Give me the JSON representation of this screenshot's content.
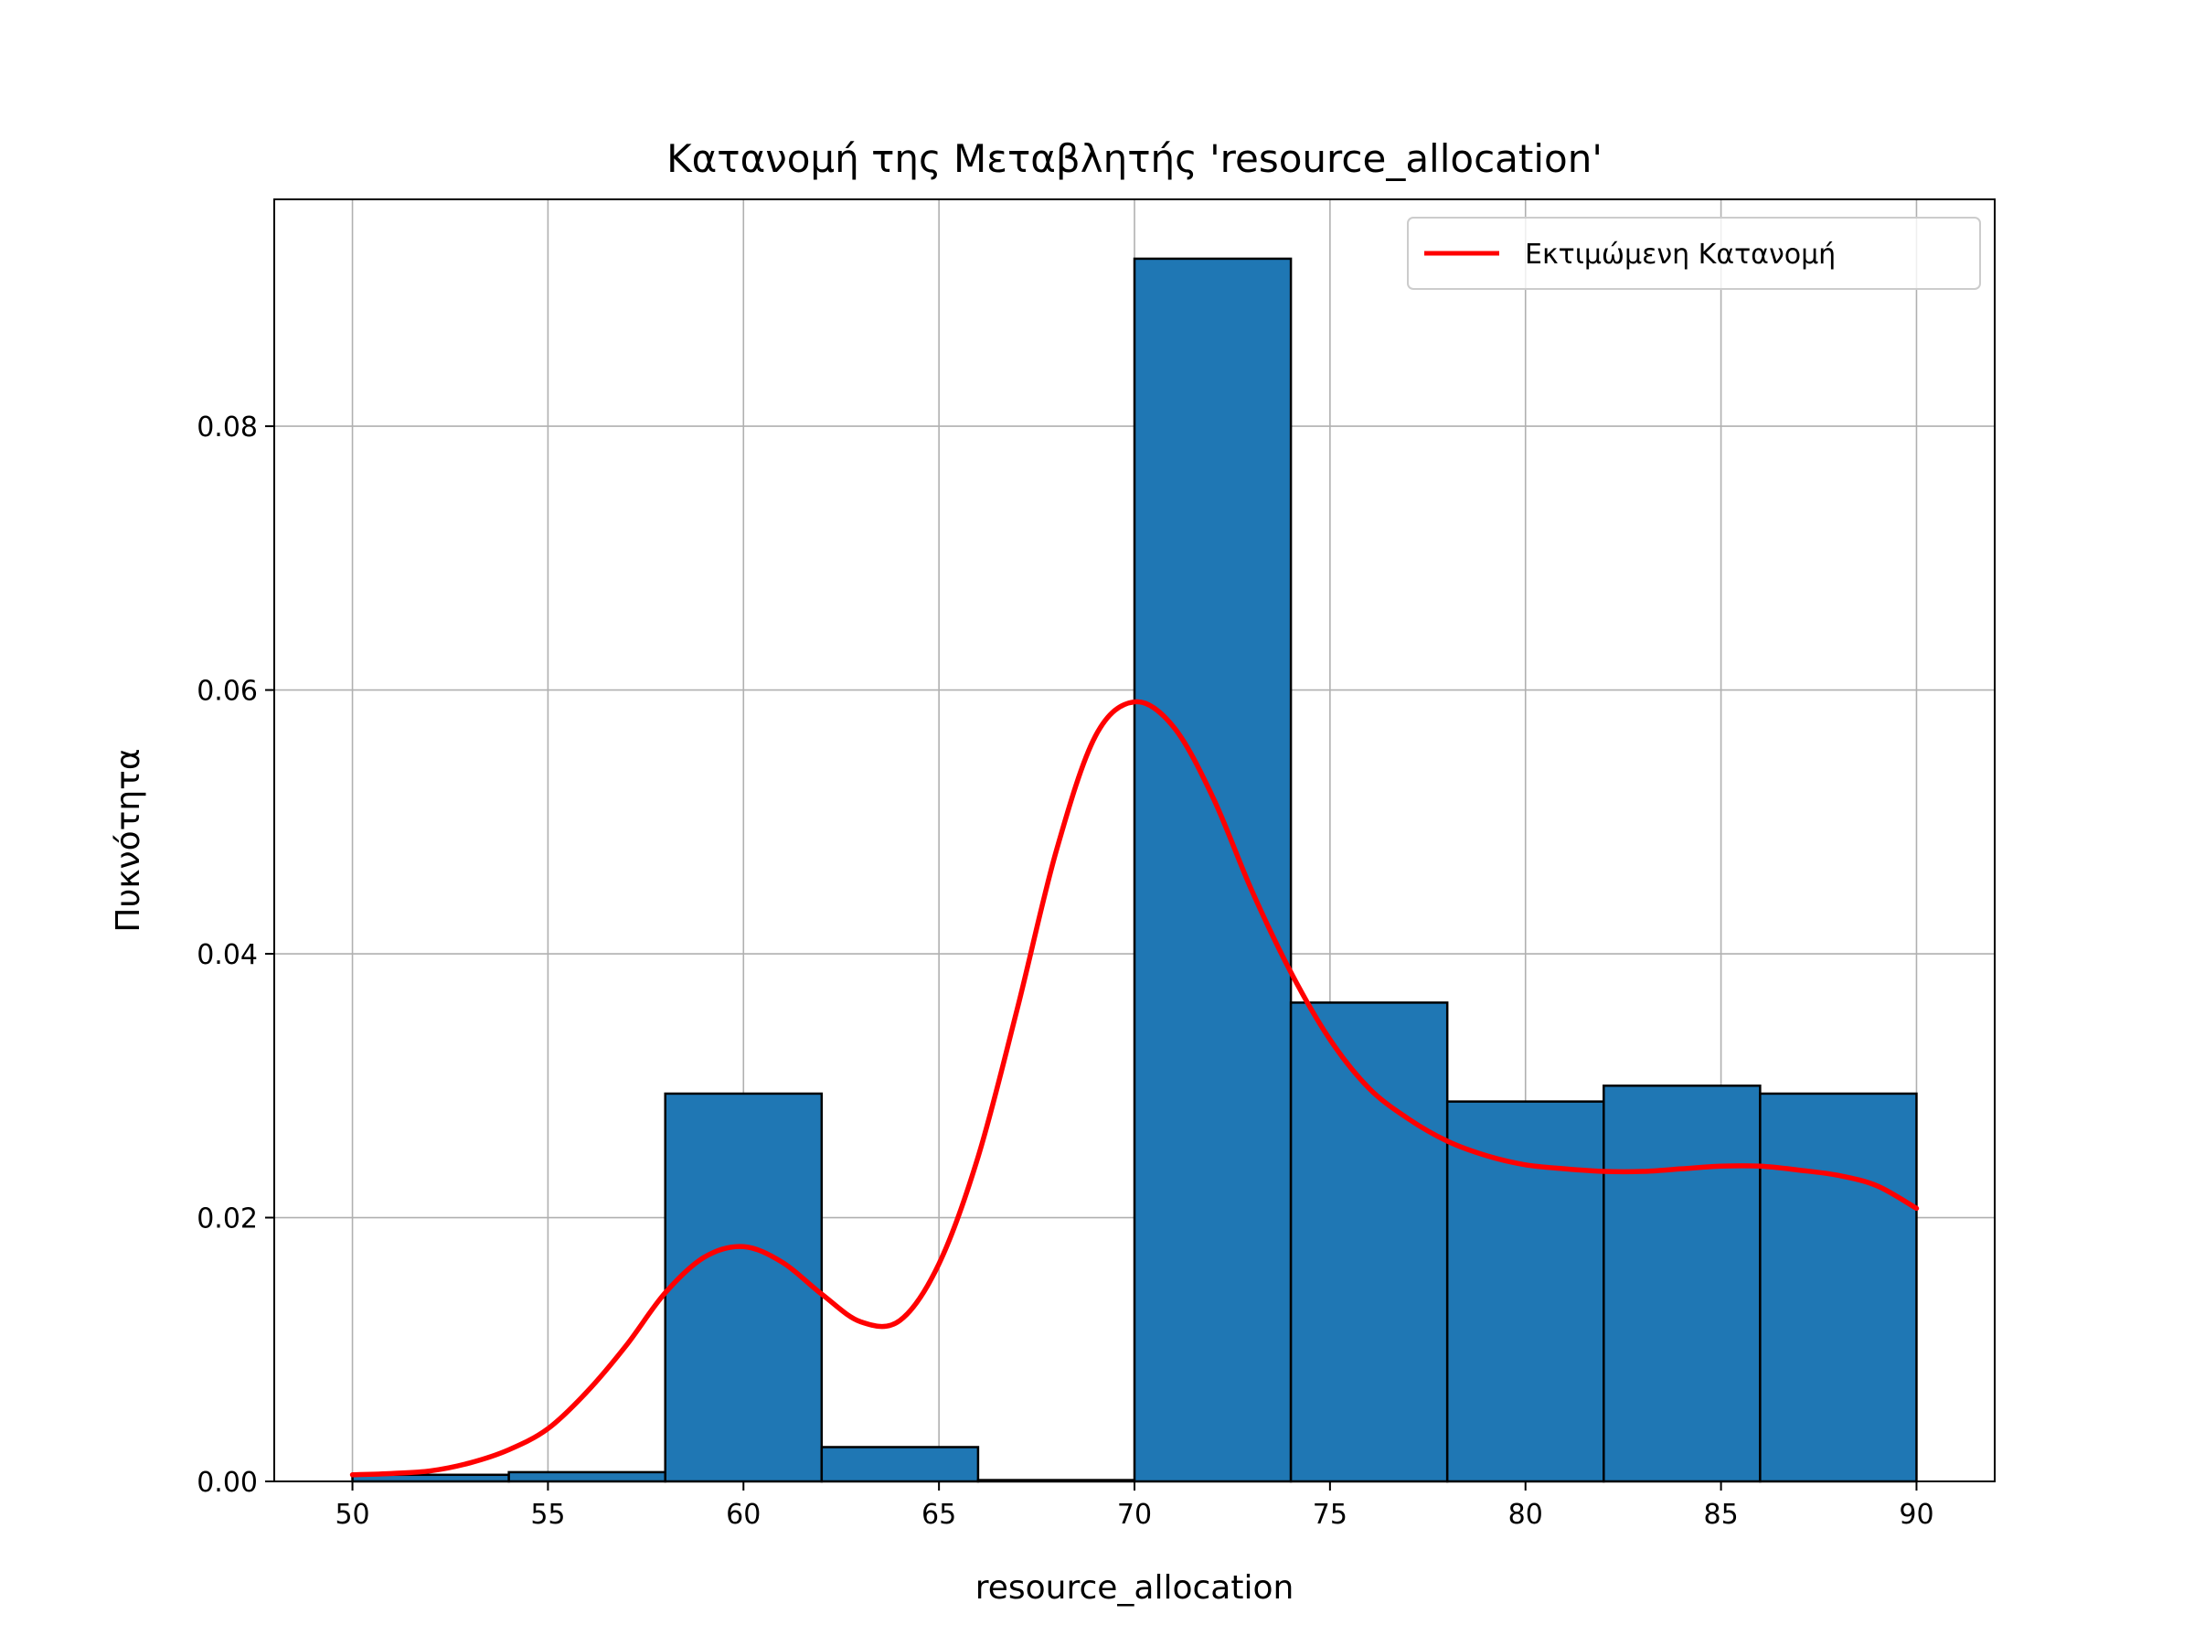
{
  "chart_data": {
    "type": "bar",
    "title": "Κατανομή της Μεταβλητής 'resource_allocation'",
    "xlabel": "resource_allocation",
    "ylabel": "Πυκνότητα",
    "xlim": [
      48,
      92
    ],
    "ylim": [
      0,
      0.0972
    ],
    "x_ticks": [
      50,
      55,
      60,
      65,
      70,
      75,
      80,
      85,
      90
    ],
    "y_ticks": [
      0.0,
      0.02,
      0.04,
      0.06,
      0.08
    ],
    "y_tick_labels": [
      "0.00",
      "0.02",
      "0.04",
      "0.06",
      "0.08"
    ],
    "grid": true,
    "legend_position": "top-right",
    "histogram": {
      "bin_edges": [
        50,
        54,
        58,
        62,
        66,
        70,
        74,
        78,
        82,
        86,
        90
      ],
      "values": [
        0.0005,
        0.0007,
        0.0294,
        0.0026,
        0.0001,
        0.0927,
        0.0363,
        0.0288,
        0.03,
        0.0294
      ],
      "color": "#1f77b4",
      "edgecolor": "#000000"
    },
    "series": [
      {
        "name": "Εκτιμώμενη Κατανομή",
        "type": "line",
        "color": "#ff0000",
        "x": [
          50,
          51,
          52,
          53,
          54,
          55,
          56,
          57,
          58,
          59,
          60,
          61,
          62,
          63,
          64,
          65,
          66,
          67,
          68,
          69,
          70,
          71,
          72,
          73,
          74,
          75,
          76,
          77,
          78,
          79,
          80,
          81,
          82,
          83,
          84,
          85,
          86,
          87,
          88,
          89,
          90
        ],
        "y": [
          0.0005,
          0.0006,
          0.0008,
          0.0014,
          0.0024,
          0.004,
          0.0068,
          0.0103,
          0.0143,
          0.017,
          0.0178,
          0.0166,
          0.0142,
          0.0121,
          0.0122,
          0.0165,
          0.0246,
          0.0358,
          0.0478,
          0.0565,
          0.0591,
          0.0572,
          0.0519,
          0.0448,
          0.0386,
          0.0335,
          0.0298,
          0.0275,
          0.0258,
          0.0247,
          0.024,
          0.0237,
          0.0235,
          0.0235,
          0.0237,
          0.0239,
          0.0239,
          0.0236,
          0.0232,
          0.0224,
          0.0207
        ]
      }
    ]
  }
}
